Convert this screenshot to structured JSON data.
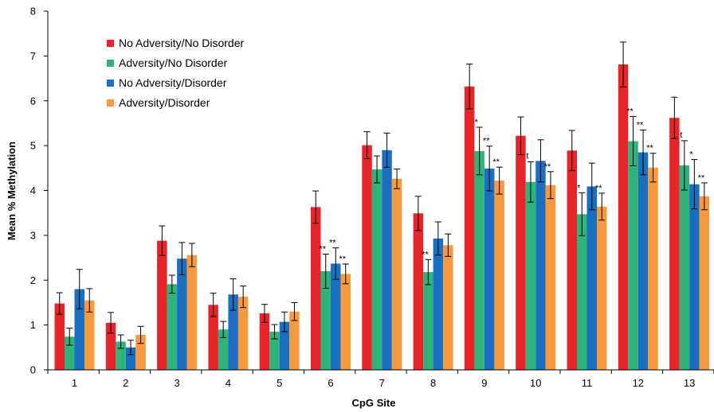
{
  "chart_data": {
    "type": "bar",
    "xlabel": "CpG Site",
    "ylabel": "Mean % Methylation",
    "ylim": [
      0,
      8
    ],
    "yticks": [
      0,
      1,
      2,
      3,
      4,
      5,
      6,
      7,
      8
    ],
    "categories": [
      "1",
      "2",
      "3",
      "4",
      "5",
      "6",
      "7",
      "8",
      "9",
      "10",
      "11",
      "12",
      "13"
    ],
    "legend_position": "top-left",
    "grid": false,
    "series": [
      {
        "name": "No Adversity/No Disorder",
        "color": "#e8242b",
        "values": [
          1.48,
          1.05,
          2.88,
          1.45,
          1.26,
          3.63,
          5.01,
          3.49,
          6.32,
          5.22,
          4.89,
          6.81,
          5.62
        ],
        "errors": [
          0.24,
          0.23,
          0.33,
          0.26,
          0.2,
          0.36,
          0.3,
          0.38,
          0.5,
          0.42,
          0.45,
          0.5,
          0.46
        ],
        "annotations": [
          "",
          "",
          "",
          "",
          "",
          "",
          "",
          "",
          "",
          "",
          "",
          "",
          ""
        ]
      },
      {
        "name": "Adversity/No Disorder",
        "color": "#2fb37a",
        "values": [
          0.74,
          0.63,
          1.91,
          0.9,
          0.85,
          2.2,
          4.47,
          2.18,
          4.88,
          4.19,
          3.47,
          5.1,
          4.56
        ],
        "errors": [
          0.19,
          0.15,
          0.2,
          0.18,
          0.16,
          0.38,
          0.3,
          0.28,
          0.53,
          0.45,
          0.48,
          0.55,
          0.55
        ],
        "annotations": [
          "",
          "",
          "",
          "",
          "",
          "**",
          "",
          "**",
          "*",
          "t",
          "*",
          "**",
          "t"
        ]
      },
      {
        "name": "No Adversity/Disorder",
        "color": "#1a6fc1",
        "values": [
          1.8,
          0.5,
          2.48,
          1.68,
          1.07,
          2.37,
          4.9,
          2.93,
          4.49,
          4.66,
          4.09,
          4.85,
          4.14
        ],
        "errors": [
          0.44,
          0.16,
          0.36,
          0.35,
          0.22,
          0.35,
          0.38,
          0.37,
          0.5,
          0.47,
          0.52,
          0.5,
          0.55
        ],
        "annotations": [
          "",
          "",
          "",
          "",
          "",
          "**",
          "",
          "",
          "**",
          "",
          "",
          "**",
          "*"
        ]
      },
      {
        "name": "Adversity/Disorder",
        "color": "#f79a3e",
        "values": [
          1.55,
          0.78,
          2.56,
          1.63,
          1.3,
          2.14,
          4.26,
          2.78,
          4.22,
          4.12,
          3.64,
          4.51,
          3.87
        ],
        "errors": [
          0.26,
          0.19,
          0.26,
          0.24,
          0.2,
          0.22,
          0.22,
          0.25,
          0.3,
          0.3,
          0.3,
          0.32,
          0.3
        ],
        "annotations": [
          "",
          "",
          "",
          "",
          "",
          "**",
          "",
          "",
          "**",
          "**",
          "**",
          "**",
          "**"
        ]
      }
    ]
  }
}
